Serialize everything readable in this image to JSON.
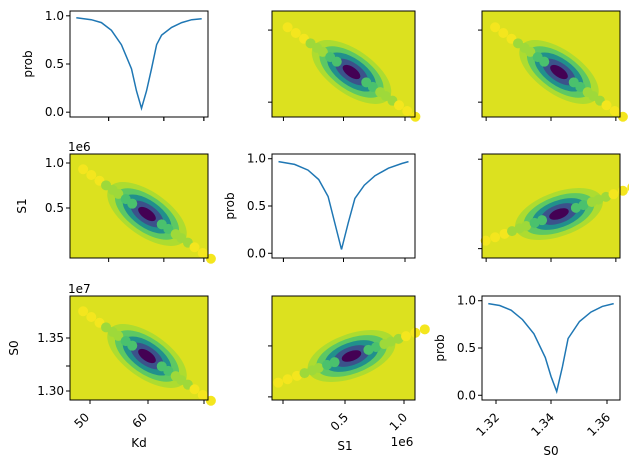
{
  "colors": {
    "line": "#1f77b4",
    "field": "#dce11f",
    "levels": [
      "#440154",
      "#3b528b",
      "#21908c",
      "#5dc863",
      "#addc30",
      "#dce11f"
    ],
    "points_light": "#f4e61e",
    "points_mid": "#9ed93a",
    "points_dark": "#4ac16d"
  },
  "labels": {
    "prob": "prob",
    "kd": "Kd",
    "s1": "S1",
    "s0": "S0",
    "sci_1e6": "1e6",
    "sci_1e7": "1e7"
  },
  "chart_data": [
    {
      "type": "line",
      "panel": "row1-col1",
      "x_var": "Kd",
      "ylabel": "prob",
      "x": [
        45,
        48,
        50,
        52,
        54,
        56,
        57,
        58,
        59,
        60,
        61,
        62,
        64,
        66,
        68,
        70
      ],
      "y": [
        0.98,
        0.96,
        0.93,
        0.85,
        0.7,
        0.45,
        0.22,
        0.04,
        0.22,
        0.45,
        0.7,
        0.8,
        0.88,
        0.93,
        0.96,
        0.97
      ],
      "ylim": [
        0,
        1
      ],
      "yticks": [
        "0.0",
        "0.5",
        "1.0"
      ]
    },
    {
      "type": "heatmap",
      "panel": "row1-col2",
      "x_var": "S1",
      "y_var": "Kd",
      "description_colors": "viridis filled contours with sampled points"
    },
    {
      "type": "heatmap",
      "panel": "row1-col3",
      "x_var": "S0",
      "y_var": "Kd"
    },
    {
      "type": "heatmap",
      "panel": "row2-col1",
      "x_var": "Kd",
      "y_var": "S1",
      "yticks": [
        "0.5",
        "1.0"
      ],
      "y_offset_label": "1e6"
    },
    {
      "type": "line",
      "panel": "row2-col2",
      "x_var": "S1",
      "ylabel": "prob",
      "x": [
        0.08,
        0.2,
        0.3,
        0.38,
        0.45,
        0.5,
        0.55,
        0.6,
        0.65,
        0.72,
        0.8,
        0.9,
        1.0,
        1.05
      ],
      "y": [
        0.97,
        0.94,
        0.88,
        0.78,
        0.6,
        0.32,
        0.04,
        0.32,
        0.58,
        0.72,
        0.82,
        0.9,
        0.95,
        0.97
      ],
      "ylim": [
        0,
        1
      ],
      "yticks": [
        "0.0",
        "0.5",
        "1.0"
      ]
    },
    {
      "type": "heatmap",
      "panel": "row2-col3",
      "x_var": "S0",
      "y_var": "S1"
    },
    {
      "type": "heatmap",
      "panel": "row3-col1",
      "x_var": "Kd",
      "y_var": "S0",
      "xticks": [
        "50",
        "60"
      ],
      "xlabel": "Kd",
      "yticks": [
        "1.30",
        "1.35"
      ],
      "y_offset_label": "1e7"
    },
    {
      "type": "heatmap",
      "panel": "row3-col2",
      "x_var": "S1",
      "y_var": "S0",
      "xticks": [
        "0.5",
        "1.0"
      ],
      "xlabel": "S1",
      "x_offset_label": "1e6"
    },
    {
      "type": "line",
      "panel": "row3-col3",
      "x_var": "S0",
      "ylabel": "prob",
      "xlabel": "S0",
      "x": [
        1.31,
        1.315,
        1.32,
        1.325,
        1.33,
        1.335,
        1.3375,
        1.34,
        1.3425,
        1.345,
        1.35,
        1.355,
        1.36,
        1.365
      ],
      "y": [
        0.97,
        0.95,
        0.9,
        0.8,
        0.65,
        0.4,
        0.2,
        0.04,
        0.3,
        0.6,
        0.78,
        0.88,
        0.94,
        0.97
      ],
      "ylim": [
        0,
        1
      ],
      "yticks": [
        "0.0",
        "0.5",
        "1.0"
      ],
      "xticks": [
        "1.32",
        "1.34",
        "1.36"
      ]
    }
  ]
}
